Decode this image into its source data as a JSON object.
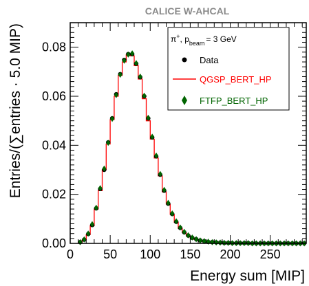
{
  "chart_data": {
    "type": "scatter",
    "title": "CALICE W-AHCAL",
    "xlabel": "Energy sum [MIP]",
    "ylabel": "Entries/(∑entries · 5.0 MIP)",
    "xlim": [
      0,
      295
    ],
    "ylim": [
      0,
      0.09
    ],
    "x_ticks": [
      0,
      50,
      100,
      150,
      200,
      250
    ],
    "y_ticks": [
      0.0,
      0.02,
      0.04,
      0.06,
      0.08
    ],
    "y_tick_labels": [
      "0.00",
      "0.02",
      "0.04",
      "0.06",
      "0.08"
    ],
    "grid": false,
    "legend_position": "top-right",
    "legend_header": {
      "prefix": "π",
      "sup": "+",
      "mid": ", p",
      "sub": "beam",
      "suffix": "= 3 GeV"
    },
    "bin_width": 5,
    "bin_centers": [
      12.5,
      17.5,
      22.5,
      27.5,
      32.5,
      37.5,
      42.5,
      47.5,
      52.5,
      57.5,
      62.5,
      67.5,
      72.5,
      77.5,
      82.5,
      87.5,
      92.5,
      97.5,
      102.5,
      107.5,
      112.5,
      117.5,
      122.5,
      127.5,
      132.5,
      137.5,
      142.5,
      147.5,
      152.5,
      157.5,
      162.5,
      167.5,
      172.5,
      177.5,
      182.5,
      187.5,
      192.5,
      197.5,
      202.5,
      207.5,
      212.5,
      217.5,
      222.5,
      227.5,
      232.5,
      237.5,
      242.5,
      247.5,
      252.5,
      257.5,
      262.5,
      267.5,
      272.5,
      277.5,
      282.5,
      287.5,
      292.5
    ],
    "series": [
      {
        "name": "Data",
        "marker": "circle",
        "color": "#000000",
        "values": [
          0.0005,
          0.0015,
          0.0038,
          0.0075,
          0.0143,
          0.0222,
          0.03,
          0.0412,
          0.051,
          0.0608,
          0.069,
          0.0748,
          0.0772,
          0.0772,
          0.0733,
          0.0678,
          0.06,
          0.051,
          0.0432,
          0.0355,
          0.028,
          0.0215,
          0.0162,
          0.012,
          0.0088,
          0.0063,
          0.0045,
          0.0032,
          0.0023,
          0.0017,
          0.0012,
          0.0009,
          0.0006,
          0.0005,
          0.0004,
          0.0003,
          0.0002,
          0.0002,
          0.0001,
          0.0001,
          0.0001,
          0.0001,
          0.0001,
          0.0,
          0.0,
          0.0,
          0.0,
          0.0,
          0.0,
          0.0,
          0.0,
          0.0,
          0.0,
          0.0,
          0.0,
          0.0,
          0.0
        ]
      },
      {
        "name": "QGSP_BERT_HP",
        "marker": "step-line",
        "color": "#ff0000",
        "values": [
          0.0004,
          0.0014,
          0.0036,
          0.0072,
          0.014,
          0.0215,
          0.03,
          0.0405,
          0.0505,
          0.06,
          0.0685,
          0.074,
          0.077,
          0.0765,
          0.0725,
          0.067,
          0.059,
          0.05,
          0.0425,
          0.0348,
          0.0275,
          0.021,
          0.016,
          0.0118,
          0.0086,
          0.0061,
          0.0044,
          0.0031,
          0.0022,
          0.0016,
          0.0011,
          0.0008,
          0.0006,
          0.0004,
          0.0003,
          0.0002,
          0.0002,
          0.0001,
          0.0001,
          0.0001,
          0.0001,
          0.0,
          0.0,
          0.0,
          0.0,
          0.0,
          0.0,
          0.0,
          0.0,
          0.0,
          0.0,
          0.0,
          0.0,
          0.0,
          0.0,
          0.0,
          0.0
        ]
      },
      {
        "name": "FTFP_BERT_HP",
        "marker": "diamond",
        "color": "#006400",
        "values": [
          0.0005,
          0.0016,
          0.004,
          0.0078,
          0.0145,
          0.0225,
          0.0305,
          0.041,
          0.0508,
          0.0605,
          0.0688,
          0.0745,
          0.077,
          0.0775,
          0.0735,
          0.068,
          0.0602,
          0.0512,
          0.0435,
          0.0358,
          0.0283,
          0.0218,
          0.0165,
          0.0122,
          0.009,
          0.0065,
          0.0047,
          0.0033,
          0.0024,
          0.0017,
          0.0012,
          0.0009,
          0.0007,
          0.0005,
          0.0004,
          0.0003,
          0.0002,
          0.0002,
          0.0001,
          0.0001,
          0.0001,
          0.0001,
          0.0001,
          0.0,
          0.0,
          0.0,
          0.0,
          0.0,
          0.0,
          0.0,
          0.0,
          0.0,
          0.0,
          0.0,
          0.0,
          0.0,
          0.0
        ]
      }
    ]
  }
}
